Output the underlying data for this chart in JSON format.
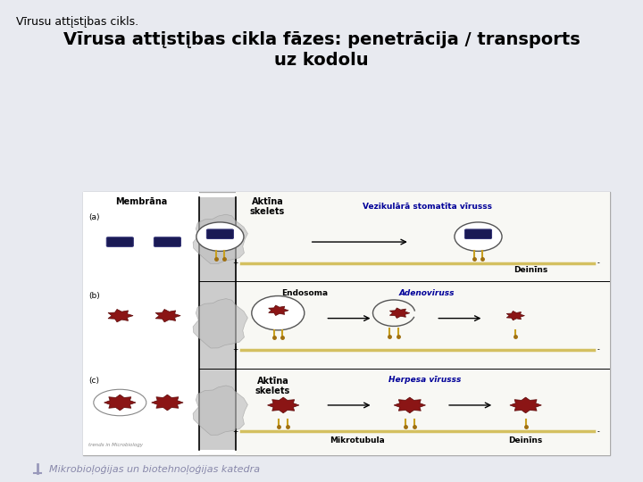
{
  "bg_color": "#e8eaf0",
  "slide_title": "Vīrusu attįstįbas cikls.",
  "main_title_line1": "Vīrusa attįstįbas cikla fāzes: penetrācija / transports",
  "main_title_line2": "uz kodolu",
  "footer_text": "Mikrobioļoģijas un biotehnoļoģijas katedra",
  "slide_title_color": "#000000",
  "main_title_color": "#000000",
  "footer_color": "#8888aa",
  "diagram_border_color": "#aaaaaa",
  "label_a": "(a)",
  "label_b": "(b)",
  "label_c": "(c)",
  "label_membrana": "Membrāna",
  "label_aktina_skelets_top": "Aktīna\nskelets",
  "label_aktina_skelets_bot": "Aktīna\nskelets",
  "label_endosoma": "Endosoma",
  "label_vesikula": "Vezikulārā stomatīta vīrusss",
  "label_deinins_top": "Deinīns",
  "label_adenoviruss": "Adenoviruss",
  "label_herpesa": "Herpesa vīrusss",
  "label_mikrotubula": "Mikrotubula",
  "label_deinins_bot": "Deinīns",
  "virus_label_color": "#000099",
  "diagram_bg": "#f8f8f4",
  "title_fontsize": 14,
  "slide_title_fontsize": 9,
  "footer_fontsize": 8,
  "watermark": "trends in Microbiology"
}
